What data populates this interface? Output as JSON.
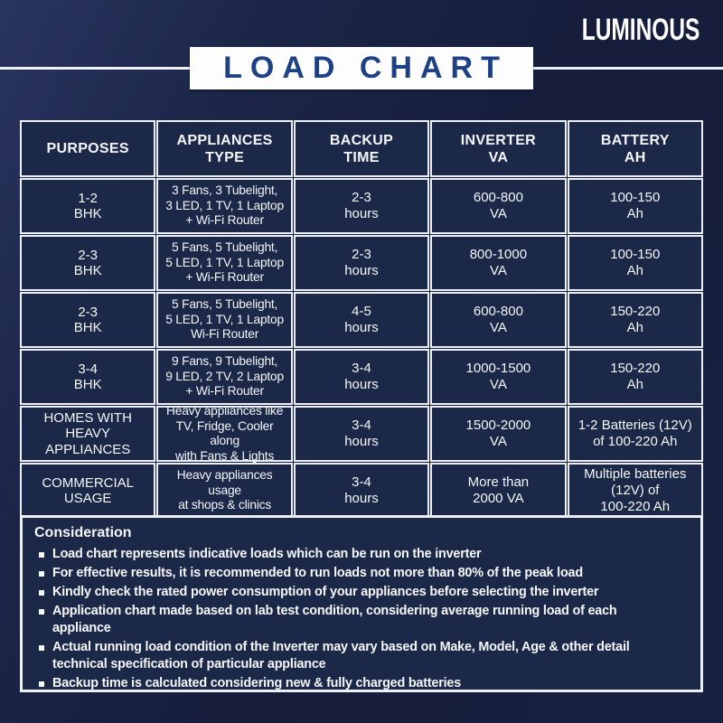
{
  "brand": "LUMINOUS",
  "banner": {
    "title": "LOAD CHART"
  },
  "table": {
    "headers": [
      "PURPOSES",
      "APPLIANCES\nTYPE",
      "BACKUP\nTIME",
      "INVERTER\nVA",
      "BATTERY\nAH"
    ],
    "rows": [
      {
        "purpose": "1-2\nBHK",
        "appliances": "3 Fans, 3 Tubelight,\n3 LED, 1 TV, 1 Laptop\n+ Wi-Fi Router",
        "backup": "2-3\nhours",
        "inverter": "600-800\nVA",
        "battery": "100-150\nAh"
      },
      {
        "purpose": "2-3\nBHK",
        "appliances": "5 Fans, 5 Tubelight,\n5 LED, 1 TV, 1 Laptop\n+ Wi-Fi Router",
        "backup": "2-3\nhours",
        "inverter": "800-1000\nVA",
        "battery": "100-150\nAh"
      },
      {
        "purpose": "2-3\nBHK",
        "appliances": "5 Fans, 5 Tubelight,\n5 LED, 1 TV, 1 Laptop\nWi-Fi Router",
        "backup": "4-5\nhours",
        "inverter": "600-800\nVA",
        "battery": "150-220\nAh"
      },
      {
        "purpose": "3-4\nBHK",
        "appliances": "9 Fans, 9 Tubelight,\n9 LED, 2 TV, 2 Laptop\n+ Wi-Fi Router",
        "backup": "3-4\nhours",
        "inverter": "1000-1500\nVA",
        "battery": "150-220\nAh"
      },
      {
        "purpose": "HOMES WITH\nHEAVY\nAPPLIANCES",
        "appliances": "Heavy appliances like\nTV, Fridge, Cooler along\nwith Fans & Lights",
        "backup": "3-4\nhours",
        "inverter": "1500-2000\nVA",
        "battery": "1-2 Batteries (12V)\nof 100-220 Ah"
      },
      {
        "purpose": "COMMERCIAL\nUSAGE",
        "appliances": "Heavy appliances\nusage\nat shops & clinics",
        "backup": "3-4\nhours",
        "inverter": "More than\n2000 VA",
        "battery": "Multiple batteries\n(12V) of\n100-220 Ah"
      }
    ]
  },
  "consideration": {
    "heading": "Consideration",
    "bullets": [
      "Load chart represents indicative loads which can be run on the inverter",
      "For effective results, it is recommended to run loads not more than 80% of the peak load",
      "Kindly check the rated power consumption of your appliances before selecting the inverter",
      "Application chart made based on lab test condition, considering average running load of each\nappliance",
      "Actual running load condition of the Inverter may vary based on Make, Model, Age & other detail\ntechnical specification of particular appliance",
      "Backup time is calculated considering new & fully charged batteries"
    ]
  },
  "colors": {
    "background": "#18203e",
    "cell_fill": "#1b2847",
    "border_white": "#ecf0f6",
    "title_blue": "#1e4185",
    "text_white": "#f4f6fb"
  },
  "chart_data": {
    "type": "table",
    "title": "LOAD CHART",
    "columns": [
      "PURPOSES",
      "APPLIANCES TYPE",
      "BACKUP TIME",
      "INVERTER VA",
      "BATTERY AH"
    ],
    "rows": [
      [
        "1-2 BHK",
        "3 Fans, 3 Tubelight, 3 LED, 1 TV, 1 Laptop + Wi-Fi Router",
        "2-3 hours",
        "600-800 VA",
        "100-150 Ah"
      ],
      [
        "2-3 BHK",
        "5 Fans, 5 Tubelight, 5 LED, 1 TV, 1 Laptop + Wi-Fi Router",
        "2-3 hours",
        "800-1000 VA",
        "100-150 Ah"
      ],
      [
        "2-3 BHK",
        "5 Fans, 5 Tubelight, 5 LED, 1 TV, 1 Laptop Wi-Fi Router",
        "4-5 hours",
        "600-800 VA",
        "150-220 Ah"
      ],
      [
        "3-4 BHK",
        "9 Fans, 9 Tubelight, 9 LED, 2 TV, 2 Laptop + Wi-Fi Router",
        "3-4 hours",
        "1000-1500 VA",
        "150-220 Ah"
      ],
      [
        "HOMES WITH HEAVY APPLIANCES",
        "Heavy appliances like TV, Fridge, Cooler along with Fans & Lights",
        "3-4 hours",
        "1500-2000 VA",
        "1-2 Batteries (12V) of 100-220 Ah"
      ],
      [
        "COMMERCIAL USAGE",
        "Heavy appliances usage at shops & clinics",
        "3-4 hours",
        "More than 2000 VA",
        "Multiple batteries (12V) of 100-220 Ah"
      ]
    ]
  }
}
